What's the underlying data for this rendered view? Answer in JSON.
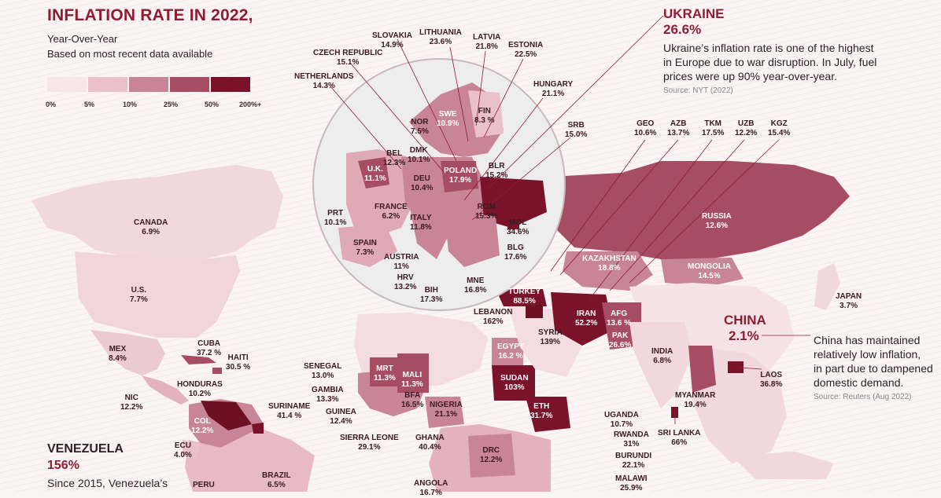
{
  "header": {
    "title": "INFLATION RATE IN 2022,",
    "subtitle1": "Year-Over-Year",
    "subtitle2": "Based on most recent data available"
  },
  "legend": {
    "colors": [
      "#f7e6ea",
      "#e9c0cb",
      "#c98598",
      "#a74d63",
      "#7a1229"
    ],
    "ticks": [
      "0%",
      "5%",
      "10%",
      "25%",
      "50%",
      "200%+"
    ]
  },
  "callouts": {
    "ukraine": {
      "name": "UKRAINE",
      "value": "26.6%",
      "line1": "Ukraine’s inflation rate is one of the highest",
      "line2": "in Europe due to war disruption. In July, fuel",
      "line3": "prices were up 90% year-over-year.",
      "source": "Source: NYT (2022)"
    },
    "china": {
      "name": "CHINA",
      "value": "2.1%",
      "line1": "China has maintained",
      "line2": "relatively low inflation,",
      "line3": "in part due to dampened",
      "line4": "domestic demand.",
      "source": "Source: Reuters (Aug 2022)"
    },
    "venezuela": {
      "name": "VENEZUELA",
      "value": "156%",
      "line1": "Since 2015, Venezuela’s"
    }
  },
  "countries": [
    {
      "name": "CANADA",
      "value": "6.9%"
    },
    {
      "name": "U.S.",
      "value": "7.7%"
    },
    {
      "name": "MEX",
      "value": "8.4%"
    },
    {
      "name": "CUBA",
      "value": "37.2 %"
    },
    {
      "name": "HAITI",
      "value": "30.5 %"
    },
    {
      "name": "HONDURAS",
      "value": "10.2%"
    },
    {
      "name": "NIC",
      "value": "12.2%"
    },
    {
      "name": "COL",
      "value": "12.2%"
    },
    {
      "name": "ECU",
      "value": "4.0%"
    },
    {
      "name": "SURINAME",
      "value": "41.4 %"
    },
    {
      "name": "BRAZIL",
      "value": "6.5%"
    },
    {
      "name": "PERU",
      "value": ""
    },
    {
      "name": "SLOVAKIA",
      "value": "14.9%"
    },
    {
      "name": "LITHUANIA",
      "value": "23.6%"
    },
    {
      "name": "LATVIA",
      "value": "21.8%"
    },
    {
      "name": "ESTONIA",
      "value": "22.5%"
    },
    {
      "name": "CZECH REPUBLIC",
      "value": "15.1%"
    },
    {
      "name": "NETHERLANDS",
      "value": "14.3%"
    },
    {
      "name": "HUNGARY",
      "value": "21.1%"
    },
    {
      "name": "SRB",
      "value": "15.0%"
    },
    {
      "name": "FIN",
      "value": "8.3 %"
    },
    {
      "name": "SWE",
      "value": "10.9%"
    },
    {
      "name": "NOR",
      "value": "7.5%"
    },
    {
      "name": "DMK",
      "value": "10.1%"
    },
    {
      "name": "BEL",
      "value": "12.3%"
    },
    {
      "name": "U.K.",
      "value": "11.1%"
    },
    {
      "name": "DEU",
      "value": "10.4%"
    },
    {
      "name": "POLAND",
      "value": "17.9%"
    },
    {
      "name": "BLR",
      "value": "15.2%"
    },
    {
      "name": "FRANCE",
      "value": "6.2%"
    },
    {
      "name": "PRT",
      "value": "10.1%"
    },
    {
      "name": "SPAIN",
      "value": "7.3%"
    },
    {
      "name": "ITALY",
      "value": "11.8%"
    },
    {
      "name": "ROM",
      "value": "15.3%"
    },
    {
      "name": "MOL",
      "value": "34.6%"
    },
    {
      "name": "BLG",
      "value": "17.6%"
    },
    {
      "name": "AUSTRIA",
      "value": "11%"
    },
    {
      "name": "HRV",
      "value": "13.2%"
    },
    {
      "name": "BIH",
      "value": "17.3%"
    },
    {
      "name": "MNE",
      "value": "16.8%"
    },
    {
      "name": "GEO",
      "value": "10.6%"
    },
    {
      "name": "AZB",
      "value": "13.7%"
    },
    {
      "name": "TKM",
      "value": "17.5%"
    },
    {
      "name": "UZB",
      "value": "12.2%"
    },
    {
      "name": "KGZ",
      "value": "15.4%"
    },
    {
      "name": "RUSSIA",
      "value": "12.6%"
    },
    {
      "name": "KAZAKHSTAN",
      "value": "18.8%"
    },
    {
      "name": "MONGOLIA",
      "value": "14.5%"
    },
    {
      "name": "JAPAN",
      "value": "3.7%"
    },
    {
      "name": "TURKEY",
      "value": "88.5%"
    },
    {
      "name": "LEBANON",
      "value": "162%"
    },
    {
      "name": "SYRIA",
      "value": "139%"
    },
    {
      "name": "IRAN",
      "value": "52.2%"
    },
    {
      "name": "AFG",
      "value": "13.6 %"
    },
    {
      "name": "PAK",
      "value": "26.6%"
    },
    {
      "name": "INDIA",
      "value": "6.8%"
    },
    {
      "name": "LAOS",
      "value": "36.8%"
    },
    {
      "name": "MYANMAR",
      "value": "19.4%"
    },
    {
      "name": "SRI LANKA",
      "value": "66%"
    },
    {
      "name": "EGYPT",
      "value": "16.2 %"
    },
    {
      "name": "SUDAN",
      "value": "103%"
    },
    {
      "name": "ETH",
      "value": "31.7%"
    },
    {
      "name": "SENEGAL",
      "value": "13.0%"
    },
    {
      "name": "GAMBIA",
      "value": "13.3%"
    },
    {
      "name": "GUINEA",
      "value": "12.4%"
    },
    {
      "name": "SIERRA LEONE",
      "value": "29.1%"
    },
    {
      "name": "MRT",
      "value": "11.3%"
    },
    {
      "name": "MALI",
      "value": "11.3%"
    },
    {
      "name": "BFA",
      "value": "16.5%"
    },
    {
      "name": "NIGERIA",
      "value": "21.1%"
    },
    {
      "name": "GHANA",
      "value": "40.4%"
    },
    {
      "name": "UGANDA",
      "value": "10.7%"
    },
    {
      "name": "RWANDA",
      "value": "31%"
    },
    {
      "name": "BURUNDI",
      "value": "22.1%"
    },
    {
      "name": "DRC",
      "value": "12.2%"
    },
    {
      "name": "ANGOLA",
      "value": "16.7%"
    },
    {
      "name": "MALAWI",
      "value": "25.9%"
    }
  ]
}
